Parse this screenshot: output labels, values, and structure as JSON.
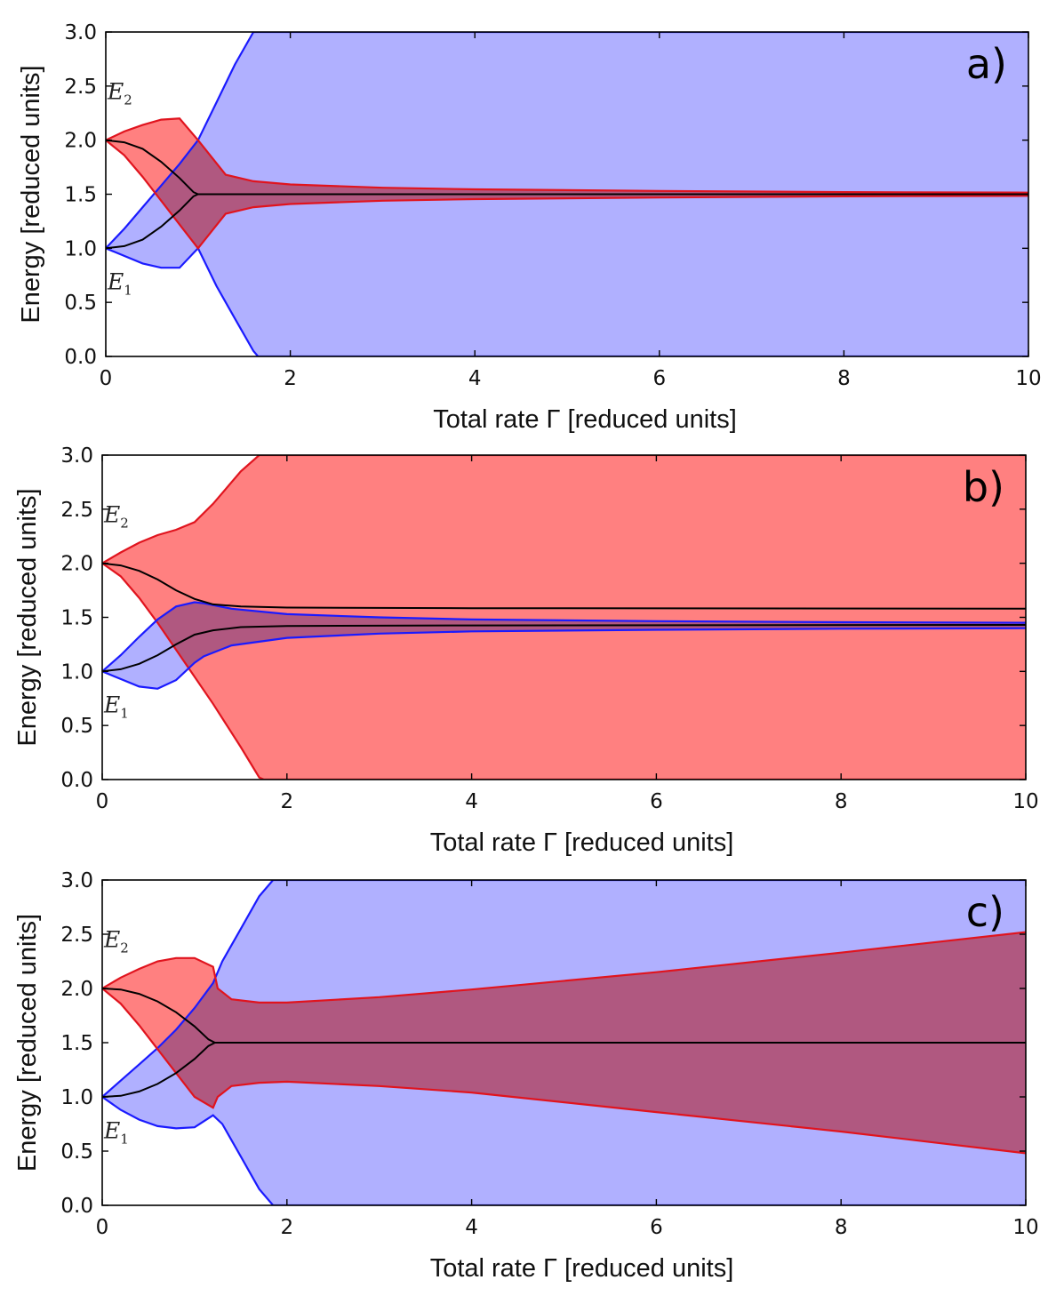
{
  "chart_data": [
    {
      "type": "area",
      "panel_label": "a)",
      "xlabel": "Total rate Γ [reduced units]",
      "ylabel": "Energy [reduced units]",
      "xlim": [
        0,
        10
      ],
      "ylim": [
        0,
        3
      ],
      "xticks": [
        "0",
        "2",
        "4",
        "6",
        "8",
        "10"
      ],
      "yticks": [
        "0.0",
        "0.5",
        "1.0",
        "1.5",
        "2.0",
        "2.5",
        "3.0"
      ],
      "level_labels": {
        "E2": "E",
        "E2_sub": "2",
        "E1": "E",
        "E1_sub": "1"
      },
      "colors": {
        "blue_fill": "#b0b0ff",
        "red_fill": "#ff8080",
        "overlap_fill": "#b059a6",
        "blue_line": "#1a1aff",
        "red_line": "#e0141e",
        "black_line": "#000000"
      },
      "series": [
        {
          "name": "blue band",
          "color": "blue",
          "x": [
            0,
            0.2,
            0.4,
            0.6,
            0.8,
            1.0,
            1.2,
            1.4,
            1.6,
            1.65,
            2,
            4,
            6,
            8,
            10
          ],
          "upper": [
            1.0,
            1.18,
            1.38,
            1.58,
            1.78,
            2.0,
            2.35,
            2.7,
            3.0,
            3.0,
            3.0,
            3.0,
            3.0,
            3.0,
            3.0
          ],
          "lower": [
            1.0,
            0.93,
            0.86,
            0.82,
            0.82,
            1.0,
            0.65,
            0.35,
            0.05,
            0.0,
            0.0,
            0.0,
            0.0,
            0.0,
            0.0
          ]
        },
        {
          "name": "red band",
          "color": "red",
          "x": [
            0,
            0.2,
            0.4,
            0.6,
            0.8,
            1.0,
            1.3,
            1.6,
            2,
            3,
            4,
            6,
            8,
            10
          ],
          "upper": [
            2.0,
            2.08,
            2.14,
            2.19,
            2.2,
            2.0,
            1.68,
            1.62,
            1.59,
            1.56,
            1.545,
            1.53,
            1.52,
            1.515
          ],
          "lower": [
            2.0,
            1.86,
            1.66,
            1.44,
            1.22,
            1.0,
            1.32,
            1.38,
            1.41,
            1.44,
            1.455,
            1.47,
            1.48,
            1.485
          ]
        },
        {
          "name": "upper eigenvalue",
          "color": "black",
          "x": [
            0,
            0.2,
            0.4,
            0.6,
            0.8,
            0.95,
            1.0,
            10
          ],
          "y": [
            2.0,
            1.98,
            1.92,
            1.8,
            1.65,
            1.52,
            1.5,
            1.5
          ]
        },
        {
          "name": "lower eigenvalue",
          "color": "black",
          "x": [
            0,
            0.2,
            0.4,
            0.6,
            0.8,
            0.95,
            1.0
          ],
          "y": [
            1.0,
            1.02,
            1.08,
            1.2,
            1.35,
            1.48,
            1.5
          ]
        }
      ]
    },
    {
      "type": "area",
      "panel_label": "b)",
      "xlabel": "Total rate Γ [reduced units]",
      "ylabel": "Energy [reduced units]",
      "xlim": [
        0,
        10
      ],
      "ylim": [
        0,
        3
      ],
      "xticks": [
        "0",
        "2",
        "4",
        "6",
        "8",
        "10"
      ],
      "yticks": [
        "0.0",
        "0.5",
        "1.0",
        "1.5",
        "2.0",
        "2.5",
        "3.0"
      ],
      "level_labels": {
        "E2": "E",
        "E2_sub": "2",
        "E1": "E",
        "E1_sub": "1"
      },
      "colors": {
        "blue_fill": "#b0b0ff",
        "red_fill": "#ff8080",
        "overlap_fill": "#b059a6",
        "blue_line": "#1a1aff",
        "red_line": "#e0141e",
        "black_line": "#000000"
      },
      "series": [
        {
          "name": "red band",
          "color": "red",
          "x": [
            0,
            0.2,
            0.4,
            0.6,
            0.8,
            1.0,
            1.2,
            1.5,
            1.7,
            1.75,
            2,
            4,
            6,
            8,
            10
          ],
          "upper": [
            2.0,
            2.1,
            2.19,
            2.26,
            2.31,
            2.38,
            2.55,
            2.85,
            3.0,
            3.0,
            3.0,
            3.0,
            3.0,
            3.0,
            3.0
          ],
          "lower": [
            2.0,
            1.88,
            1.68,
            1.45,
            1.2,
            0.95,
            0.7,
            0.3,
            0.02,
            0.0,
            0.0,
            0.0,
            0.0,
            0.0,
            0.0
          ]
        },
        {
          "name": "blue band",
          "color": "blue",
          "x": [
            0,
            0.2,
            0.4,
            0.6,
            0.8,
            1.0,
            1.1,
            1.4,
            2,
            3,
            4,
            6,
            8,
            10
          ],
          "upper": [
            1.0,
            1.15,
            1.32,
            1.48,
            1.6,
            1.64,
            1.63,
            1.58,
            1.53,
            1.5,
            1.48,
            1.465,
            1.455,
            1.45
          ],
          "lower": [
            1.0,
            0.93,
            0.86,
            0.84,
            0.92,
            1.08,
            1.14,
            1.24,
            1.31,
            1.35,
            1.37,
            1.385,
            1.395,
            1.4
          ]
        },
        {
          "name": "upper eigenvalue",
          "color": "black",
          "x": [
            0,
            0.2,
            0.4,
            0.6,
            0.8,
            1.0,
            1.2,
            1.5,
            2,
            4,
            10
          ],
          "y": [
            2.0,
            1.98,
            1.93,
            1.85,
            1.75,
            1.67,
            1.62,
            1.6,
            1.59,
            1.585,
            1.58
          ]
        },
        {
          "name": "lower eigenvalue",
          "color": "black",
          "x": [
            0,
            0.2,
            0.4,
            0.6,
            0.8,
            1.0,
            1.2,
            1.5,
            2,
            4,
            10
          ],
          "y": [
            1.0,
            1.02,
            1.07,
            1.15,
            1.25,
            1.34,
            1.38,
            1.41,
            1.42,
            1.425,
            1.43
          ]
        }
      ]
    },
    {
      "type": "area",
      "panel_label": "c)",
      "xlabel": "Total rate Γ [reduced units]",
      "ylabel": "Energy [reduced units]",
      "xlim": [
        0,
        10
      ],
      "ylim": [
        0,
        3
      ],
      "xticks": [
        "0",
        "2",
        "4",
        "6",
        "8",
        "10"
      ],
      "yticks": [
        "0.0",
        "0.5",
        "1.0",
        "1.5",
        "2.0",
        "2.5",
        "3.0"
      ],
      "level_labels": {
        "E2": "E",
        "E2_sub": "2",
        "E1": "E",
        "E1_sub": "1"
      },
      "colors": {
        "blue_fill": "#b0b0ff",
        "red_fill": "#ff8080",
        "overlap_fill": "#b059a6",
        "blue_line": "#1a1aff",
        "red_line": "#e0141e",
        "black_line": "#000000"
      },
      "series": [
        {
          "name": "blue band",
          "color": "blue",
          "x": [
            0,
            0.2,
            0.4,
            0.6,
            0.8,
            1.0,
            1.2,
            1.3,
            1.5,
            1.7,
            1.85,
            2,
            4,
            6,
            8,
            10
          ],
          "upper": [
            1.0,
            1.15,
            1.3,
            1.45,
            1.62,
            1.82,
            2.05,
            2.25,
            2.55,
            2.85,
            3.0,
            3.0,
            3.0,
            3.0,
            3.0,
            3.0
          ],
          "lower": [
            1.0,
            0.88,
            0.79,
            0.73,
            0.71,
            0.72,
            0.83,
            0.75,
            0.45,
            0.15,
            0.0,
            0.0,
            0.0,
            0.0,
            0.0,
            0.0
          ]
        },
        {
          "name": "red band",
          "color": "red",
          "x": [
            0,
            0.2,
            0.4,
            0.6,
            0.8,
            1.0,
            1.2,
            1.25,
            1.4,
            1.7,
            2,
            3,
            4,
            6,
            8,
            10
          ],
          "upper": [
            2.0,
            2.1,
            2.18,
            2.25,
            2.28,
            2.28,
            2.2,
            2.0,
            1.9,
            1.87,
            1.87,
            1.92,
            1.99,
            2.15,
            2.33,
            2.52
          ],
          "lower": [
            2.0,
            1.86,
            1.66,
            1.44,
            1.22,
            1.0,
            0.9,
            1.0,
            1.1,
            1.13,
            1.14,
            1.1,
            1.04,
            0.86,
            0.68,
            0.48
          ]
        },
        {
          "name": "upper eigenvalue",
          "color": "black",
          "x": [
            0,
            0.2,
            0.4,
            0.6,
            0.8,
            1.0,
            1.15,
            1.22,
            10
          ],
          "y": [
            2.0,
            1.99,
            1.95,
            1.88,
            1.78,
            1.65,
            1.53,
            1.5,
            1.5
          ]
        },
        {
          "name": "lower eigenvalue",
          "color": "black",
          "x": [
            0,
            0.2,
            0.4,
            0.6,
            0.8,
            1.0,
            1.15,
            1.22
          ],
          "y": [
            1.0,
            1.01,
            1.05,
            1.12,
            1.22,
            1.35,
            1.47,
            1.5
          ]
        }
      ]
    }
  ]
}
